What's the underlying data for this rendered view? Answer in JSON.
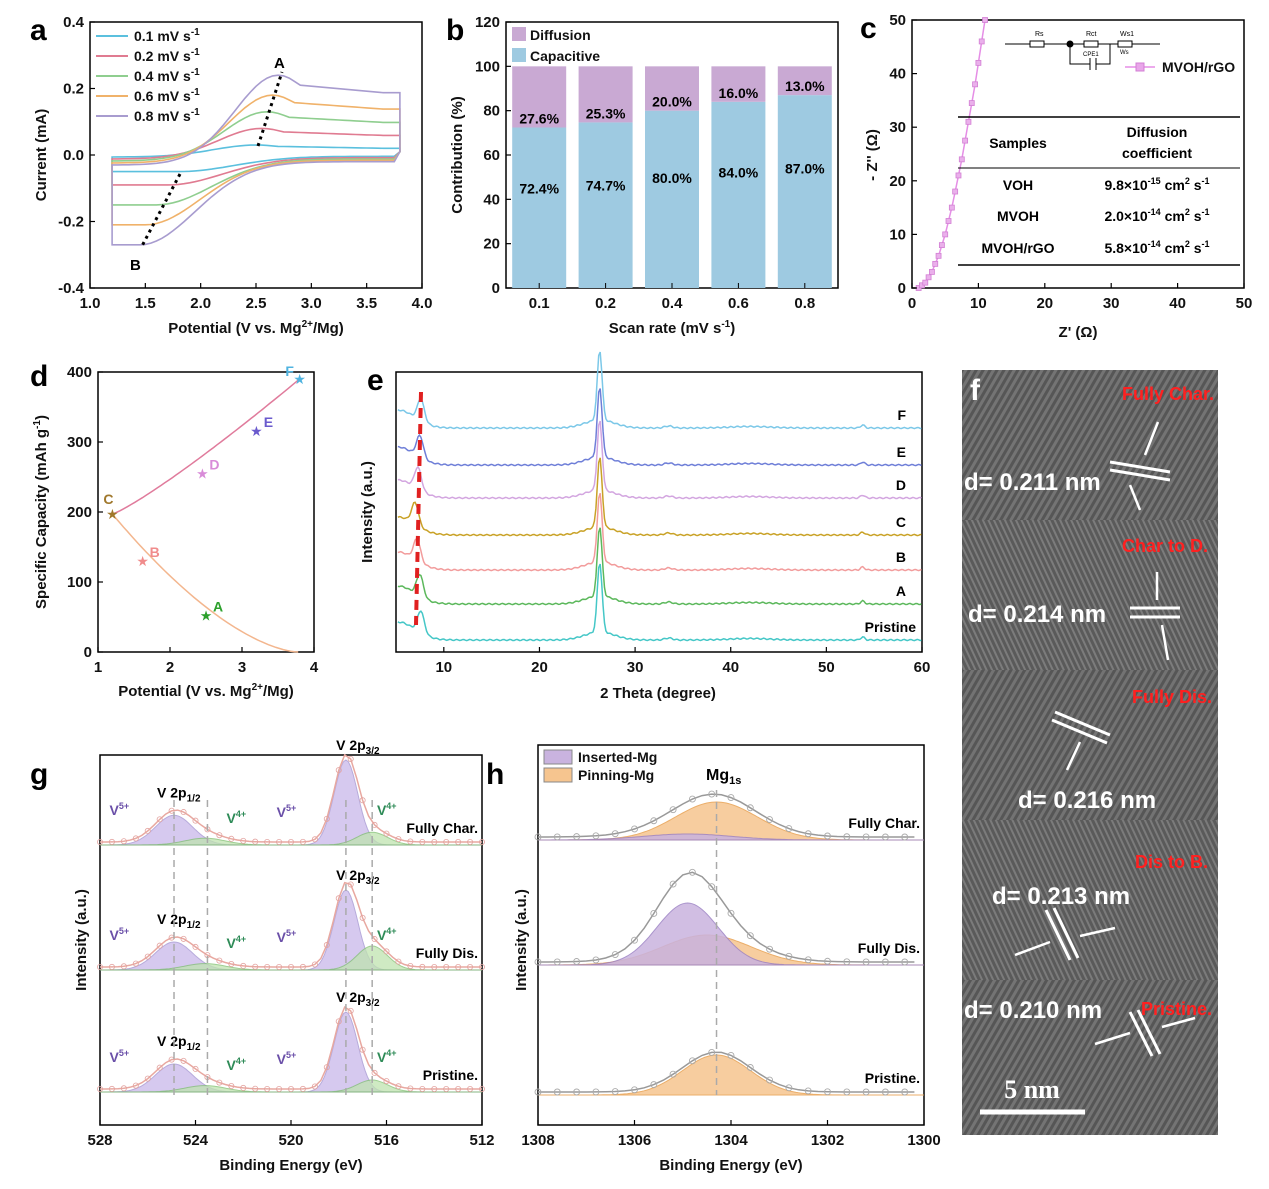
{
  "panels": [
    {
      "id": "a",
      "letter": "a"
    },
    {
      "id": "b",
      "letter": "b"
    },
    {
      "id": "c",
      "letter": "c"
    },
    {
      "id": "d",
      "letter": "d"
    },
    {
      "id": "e",
      "letter": "e"
    },
    {
      "id": "f",
      "letter": "f"
    },
    {
      "id": "g",
      "letter": "g"
    },
    {
      "id": "h",
      "letter": "h"
    }
  ],
  "chart_data": [
    {
      "panel": "a",
      "type": "line",
      "xlabel": "Potential (V vs. Mg2+/Mg)",
      "ylabel": "Current (mA)",
      "xlim": [
        1.0,
        4.0
      ],
      "ylim": [
        -0.4,
        0.4
      ],
      "xticks": [
        "1.0",
        "1.5",
        "2.0",
        "2.5",
        "3.0",
        "3.5",
        "4.0"
      ],
      "yticks": [
        "-0.4",
        "-0.2",
        "0.0",
        "0.2",
        "0.4"
      ],
      "legend_position": "top-left",
      "series": [
        {
          "name": "0.1 mV s-1",
          "color": "#5bc0de",
          "peak_anodic": [
            2.5,
            0.03
          ],
          "peak_cathodic": [
            1.8,
            -0.05
          ]
        },
        {
          "name": "0.2 mV s-1",
          "color": "#e07b91",
          "peak_anodic": [
            2.55,
            0.08
          ],
          "peak_cathodic": [
            1.7,
            -0.09
          ]
        },
        {
          "name": "0.4 mV s-1",
          "color": "#8fce8f",
          "peak_anodic": [
            2.6,
            0.13
          ],
          "peak_cathodic": [
            1.6,
            -0.15
          ]
        },
        {
          "name": "0.6 mV s-1",
          "color": "#f0b26a",
          "peak_anodic": [
            2.65,
            0.18
          ],
          "peak_cathodic": [
            1.5,
            -0.21
          ]
        },
        {
          "name": "0.8 mV s-1",
          "color": "#a89ccf",
          "peak_anodic": [
            2.7,
            0.24
          ],
          "peak_cathodic": [
            1.45,
            -0.27
          ]
        }
      ],
      "annotations": [
        "A",
        "B"
      ]
    },
    {
      "panel": "b",
      "type": "bar",
      "xlabel": "Scan rate (mV s-1)",
      "ylabel": "Contribution (%)",
      "ylim": [
        0,
        120
      ],
      "yticks": [
        "0",
        "20",
        "40",
        "60",
        "80",
        "100",
        "120"
      ],
      "categories": [
        "0.1",
        "0.2",
        "0.4",
        "0.6",
        "0.8"
      ],
      "series": [
        {
          "name": "Capacitive",
          "color": "#9ecae1",
          "values": [
            72.4,
            74.7,
            80.0,
            84.0,
            87.0
          ],
          "labels": [
            "72.4%",
            "74.7%",
            "80.0%",
            "84.0%",
            "87.0%"
          ]
        },
        {
          "name": "Diffusion",
          "color": "#c9a9d3",
          "values": [
            27.6,
            25.3,
            20.0,
            16.0,
            13.0
          ],
          "labels": [
            "27.6%",
            "25.3%",
            "20.0%",
            "16.0%",
            "13.0%"
          ]
        }
      ],
      "legend_position": "top-left"
    },
    {
      "panel": "c",
      "type": "scatter",
      "xlabel": "Z' (Ω)",
      "ylabel": "- Z'' (Ω)",
      "xlim": [
        0,
        50
      ],
      "ylim": [
        0,
        50
      ],
      "xticks": [
        "0",
        "10",
        "20",
        "30",
        "40",
        "50"
      ],
      "yticks": [
        "0",
        "10",
        "20",
        "30",
        "40",
        "50"
      ],
      "series": [
        {
          "name": "MVOH/rGO",
          "color": "#e58ee6",
          "x": [
            1,
            1.5,
            2,
            2.5,
            3,
            3.5,
            4,
            4.5,
            5,
            5.5,
            6,
            6.5,
            7,
            7.5,
            8,
            8.5,
            9,
            9.5,
            10,
            10.5,
            11
          ],
          "y": [
            0,
            0.5,
            1,
            2,
            3,
            4.5,
            6,
            8,
            10,
            12.5,
            15,
            18,
            21,
            24,
            27.5,
            31,
            34.5,
            38,
            42,
            46,
            50
          ]
        }
      ],
      "circuit_labels": [
        "Rs",
        "Rct",
        "Ws1",
        "CPE1",
        "Ws"
      ],
      "table": {
        "headers": [
          "Samples",
          "Diffusion coefficient"
        ],
        "rows": [
          [
            "VOH",
            "9.8×10-15 cm2 s-1"
          ],
          [
            "MVOH",
            "2.0×10-14 cm2 s-1"
          ],
          [
            "MVOH/rGO",
            "5.8×10-14 cm2 s-1"
          ]
        ]
      }
    },
    {
      "panel": "d",
      "type": "line",
      "xlabel": "Potential (V vs. Mg2+/Mg)",
      "ylabel": "Specific Capacity (mAh g-1)",
      "xlim": [
        1,
        4
      ],
      "ylim": [
        0,
        400
      ],
      "xticks": [
        "1",
        "2",
        "3",
        "4"
      ],
      "yticks": [
        "0",
        "100",
        "200",
        "300",
        "400"
      ],
      "points": [
        {
          "label": "A",
          "x": 2.5,
          "y": 52,
          "color": "#2ca02c"
        },
        {
          "label": "B",
          "x": 1.62,
          "y": 130,
          "color": "#f08c8c"
        },
        {
          "label": "C",
          "x": 1.2,
          "y": 197,
          "color": "#a0782c"
        },
        {
          "label": "D",
          "x": 2.45,
          "y": 255,
          "color": "#d88bd8"
        },
        {
          "label": "E",
          "x": 3.2,
          "y": 316,
          "color": "#6a5acd"
        },
        {
          "label": "F",
          "x": 3.8,
          "y": 390,
          "color": "#4fb3e0"
        }
      ]
    },
    {
      "panel": "e",
      "type": "line",
      "xlabel": "2 Theta (degree)",
      "ylabel": "Intensity (a.u.)",
      "xlim": [
        5,
        60
      ],
      "xticks": [
        "10",
        "20",
        "30",
        "40",
        "50",
        "60"
      ],
      "series": [
        {
          "name": "Pristine",
          "color": "#45c7c7"
        },
        {
          "name": "A",
          "color": "#5cb85c"
        },
        {
          "name": "B",
          "color": "#f29c9c"
        },
        {
          "name": "C",
          "color": "#c9a227"
        },
        {
          "name": "D",
          "color": "#d3a6e0"
        },
        {
          "name": "E",
          "color": "#6f7fd8"
        },
        {
          "name": "F",
          "color": "#7cc8e8"
        }
      ]
    },
    {
      "panel": "g",
      "type": "area",
      "xlabel": "Binding Energy (eV)",
      "ylabel": "Intensity  (a.u.)",
      "xlim": [
        528,
        512
      ],
      "xticks": [
        "528",
        "524",
        "520",
        "516",
        "512"
      ],
      "stacks": [
        "Fully Char.",
        "Fully Dis.",
        "Pristine."
      ],
      "peak_labels": {
        "v2p12": "V 2p1/2",
        "v2p32": "V 2p3/2",
        "v5": "V5+",
        "v4": "V4+"
      }
    },
    {
      "panel": "h",
      "type": "area",
      "xlabel": "Binding Energy (eV)",
      "ylabel": "Intensity (a.u.)",
      "xlim": [
        1308,
        1300
      ],
      "xticks": [
        "1308",
        "1306",
        "1304",
        "1302",
        "1300"
      ],
      "stacks": [
        "Fully Char.",
        "Fully Dis.",
        "Pristine."
      ],
      "legend": [
        {
          "name": "Inserted-Mg",
          "color": "#c9b3df"
        },
        {
          "name": "Pinning-Mg",
          "color": "#f6c58f"
        }
      ],
      "peak_label": "Mg1s"
    }
  ],
  "tem": {
    "sections": [
      {
        "state": "Fully Char.",
        "d": "d= 0.211 nm"
      },
      {
        "state": "Char to D.",
        "d": "d= 0.214 nm"
      },
      {
        "state": "Fully Dis.",
        "d": "d= 0.216 nm"
      },
      {
        "state": "Dis to B.",
        "d": "d= 0.213 nm"
      },
      {
        "state": "Pristine.",
        "d": "d= 0.210 nm"
      }
    ],
    "scale": "5 nm"
  }
}
